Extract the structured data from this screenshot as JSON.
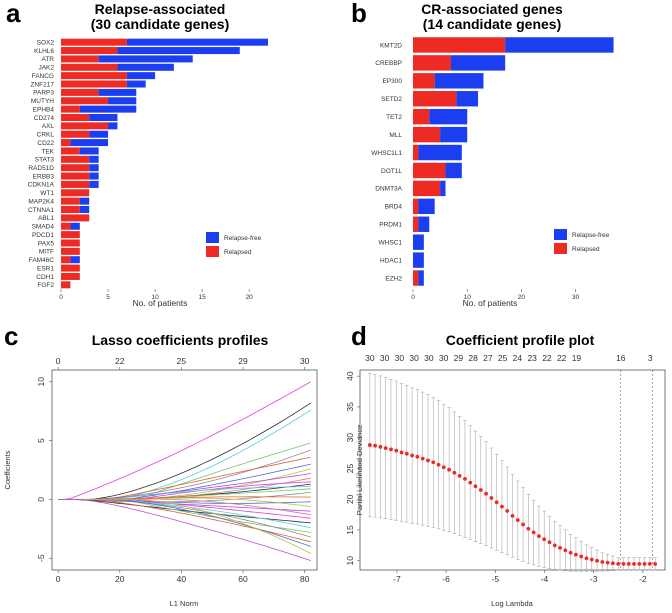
{
  "panel_labels": [
    "a",
    "b",
    "c",
    "d"
  ],
  "chart_data": [
    {
      "panel": "a",
      "type": "bar",
      "orientation": "horizontal",
      "stacked": true,
      "title_line1": "Relapse-associated",
      "title_line2": "(30 candidate genes)",
      "xlabel": "No. of patients",
      "xlim": [
        0,
        22
      ],
      "xticks": [
        0,
        5,
        10,
        15,
        20
      ],
      "categories": [
        "SOX2",
        "KLHL6",
        "ATR",
        "JAK2",
        "FANCG",
        "ZNF217",
        "PARP3",
        "MUTYH",
        "EPHB4",
        "CD274",
        "AXL",
        "CRKL",
        "CD22",
        "TEK",
        "STAT3",
        "RAD51D",
        "ERBB3",
        "CDKN1A",
        "WT1",
        "MAP2K4",
        "CTNNA1",
        "ABL1",
        "SMAD4",
        "PDCD1",
        "PAX5",
        "MITF",
        "FAM46C",
        "ESR1",
        "CDH1",
        "FGF2"
      ],
      "series": [
        {
          "name": "Relapsed",
          "color": "#ee2a24",
          "values": [
            7,
            6,
            4,
            6,
            7,
            7,
            4,
            5,
            2,
            3,
            5,
            3,
            1,
            2,
            3,
            3,
            3,
            3,
            3,
            2,
            2,
            3,
            1,
            2,
            2,
            2,
            1,
            2,
            2,
            1
          ]
        },
        {
          "name": "Relapse-free",
          "color": "#1b3ff0",
          "values": [
            15,
            13,
            10,
            6,
            3,
            2,
            4,
            3,
            6,
            3,
            1,
            2,
            4,
            2,
            1,
            1,
            1,
            1,
            0,
            1,
            1,
            0,
            1,
            0,
            0,
            0,
            1,
            0,
            0,
            0
          ]
        }
      ],
      "legend": [
        "Relapse-free",
        "Relapsed"
      ]
    },
    {
      "panel": "b",
      "type": "bar",
      "orientation": "horizontal",
      "stacked": true,
      "title_line1": "CR-associated genes",
      "title_line2": "(14 candidate genes)",
      "xlabel": "No. of patients",
      "xlim": [
        0,
        38
      ],
      "xticks": [
        0,
        10,
        20,
        30
      ],
      "categories": [
        "KMT2D",
        "CREBBP",
        "EP300",
        "SETD2",
        "TET2",
        "MLL",
        "WHSC1L1",
        "DOT1L",
        "DNMT3A",
        "BRD4",
        "PRDM1",
        "WHSC1",
        "HDAC1",
        "EZH2"
      ],
      "series": [
        {
          "name": "Relapsed",
          "color": "#ee2a24",
          "values": [
            17,
            7,
            4,
            8,
            3,
            5,
            1,
            6,
            5,
            1,
            1,
            0,
            0,
            1
          ]
        },
        {
          "name": "Relapse-free",
          "color": "#1b3ff0",
          "values": [
            20,
            10,
            9,
            4,
            7,
            5,
            8,
            3,
            1,
            3,
            2,
            2,
            2,
            1
          ]
        }
      ],
      "legend": [
        "Relapse-free",
        "Relapsed"
      ]
    },
    {
      "panel": "c",
      "type": "line",
      "title": "Lasso coefficients profiles",
      "xlabel": "L1 Norm",
      "ylabel": "Coefficients",
      "xlim": [
        -2,
        84
      ],
      "ylim": [
        -6,
        11
      ],
      "xticks": [
        0,
        20,
        40,
        60,
        80
      ],
      "yticks": [
        -5,
        0,
        5,
        10
      ],
      "top_axis_values": [
        0,
        22,
        25,
        29,
        30
      ],
      "top_axis_positions": [
        0,
        20,
        40,
        60,
        80
      ],
      "series_colors": [
        "#e63bd8",
        "#2c2c2c",
        "#58c9e8",
        "#73c66e",
        "#8e8e8e",
        "#e0603a",
        "#4f6bd8",
        "#c0bf36",
        "#b34ee0",
        "#d97a8a"
      ],
      "series_end_values": [
        10,
        8.2,
        7.6,
        4.8,
        4.2,
        3.6,
        3.0,
        2.6,
        2.2,
        1.8,
        1.5,
        1.3,
        1.1,
        0.9,
        0.6,
        0.2,
        -0.2,
        -0.6,
        -1.0,
        -1.3,
        -1.6,
        -2.0,
        -2.4,
        -2.8,
        -3.2,
        -3.6,
        -4.0,
        -4.6,
        -5.2
      ]
    },
    {
      "panel": "d",
      "type": "scatter",
      "title": "Coefficient profile plot",
      "xlabel": "Log Lambda",
      "ylabel": "Partial Likelihood Deviance",
      "xlim": [
        -7.75,
        -1.55
      ],
      "ylim": [
        8.5,
        41
      ],
      "xticks": [
        -7,
        -6,
        -5,
        -4,
        -3,
        -2
      ],
      "yticks": [
        10,
        15,
        20,
        25,
        30,
        35,
        40
      ],
      "top_axis_values": [
        30,
        30,
        30,
        30,
        30,
        30,
        29,
        28,
        27,
        25,
        24,
        23,
        22,
        22,
        19,
        16,
        3
      ],
      "top_axis_positions": [
        -7.55,
        -7.25,
        -6.95,
        -6.65,
        -6.35,
        -6.05,
        -5.75,
        -5.45,
        -5.15,
        -4.85,
        -4.55,
        -4.25,
        -3.95,
        -3.65,
        -3.35,
        -2.45,
        -1.85
      ],
      "lambda_min": -2.45,
      "lambda_1se": -1.8,
      "points_x_start": -7.55,
      "points_x_end": -1.75,
      "points_y": [
        28.8,
        28.7,
        28.5,
        28.3,
        28.1,
        27.9,
        27.6,
        27.4,
        27.1,
        26.9,
        26.6,
        26.3,
        26.0,
        25.6,
        25.2,
        24.8,
        24.3,
        23.8,
        23.3,
        22.7,
        22.1,
        21.5,
        20.9,
        20.2,
        19.5,
        18.8,
        18.1,
        17.3,
        16.6,
        15.9,
        15.2,
        14.6,
        14.0,
        13.5,
        13.0,
        12.5,
        12.1,
        11.7,
        11.3,
        11.0,
        10.7,
        10.4,
        10.2,
        10.0,
        9.8,
        9.7,
        9.6,
        9.5,
        9.5,
        9.5,
        9.5,
        9.5,
        9.5,
        9.5,
        9.5
      ],
      "point_color": "#ee2a24"
    }
  ]
}
